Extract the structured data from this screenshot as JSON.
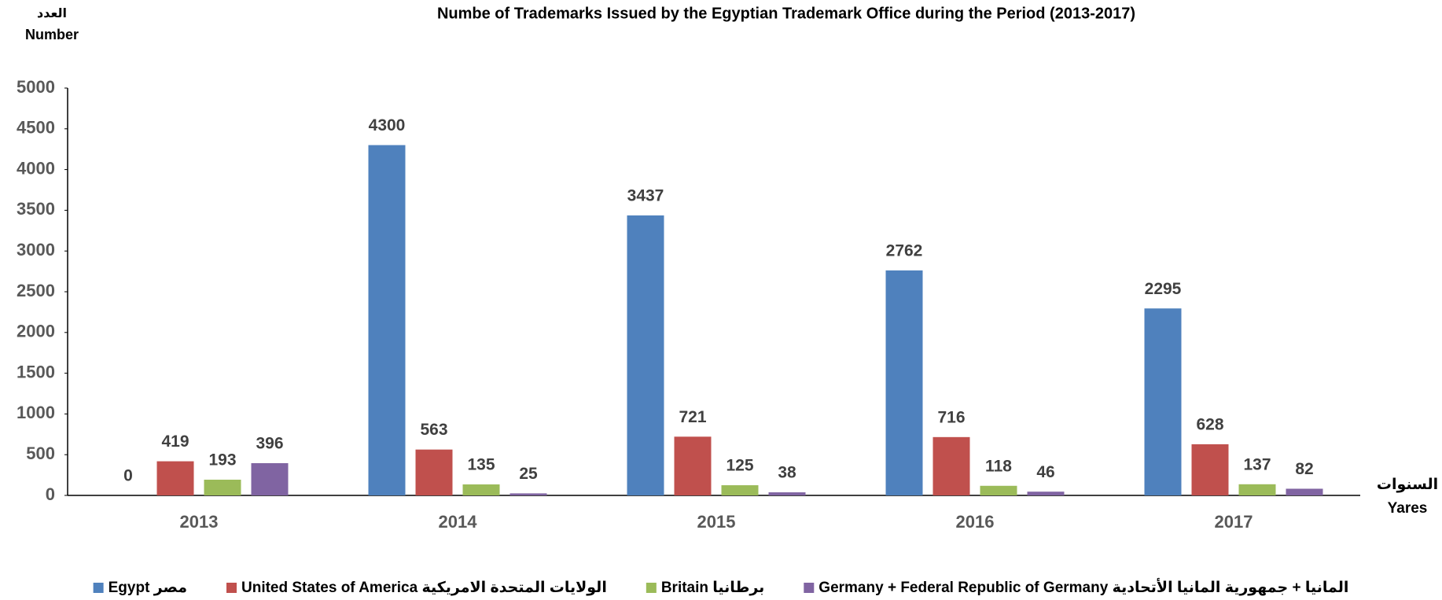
{
  "chart_data": {
    "type": "bar",
    "title": "Numbe of Trademarks Issued by the Egyptian Trademark Office during the Period (2013-2017)",
    "ylabel": [
      "العدد",
      "Number"
    ],
    "xlabel": [
      "السنوات",
      "Yares"
    ],
    "categories": [
      "2013",
      "2014",
      "2015",
      "2016",
      "2017"
    ],
    "series": [
      {
        "name": "Egypt مصر",
        "color": "#4f81bd",
        "values": [
          0,
          4300,
          3437,
          2762,
          2295
        ]
      },
      {
        "name": "United States of America الولايات المتحدة الامريكية",
        "color": "#c0504d",
        "values": [
          419,
          563,
          721,
          716,
          628
        ]
      },
      {
        "name": "Britain برطانيا",
        "color": "#9bbb59",
        "values": [
          193,
          135,
          125,
          118,
          137
        ]
      },
      {
        "name": "Germany + Federal Republic of Germany المانيا + جمهورية المانيا الأتحادية",
        "color": "#8064a2",
        "values": [
          396,
          25,
          38,
          46,
          82
        ]
      }
    ],
    "ylim": [
      0,
      5000
    ],
    "yticks": [
      0,
      500,
      1000,
      1500,
      2000,
      2500,
      3000,
      3500,
      4000,
      4500,
      5000
    ],
    "legend": "bottom"
  }
}
